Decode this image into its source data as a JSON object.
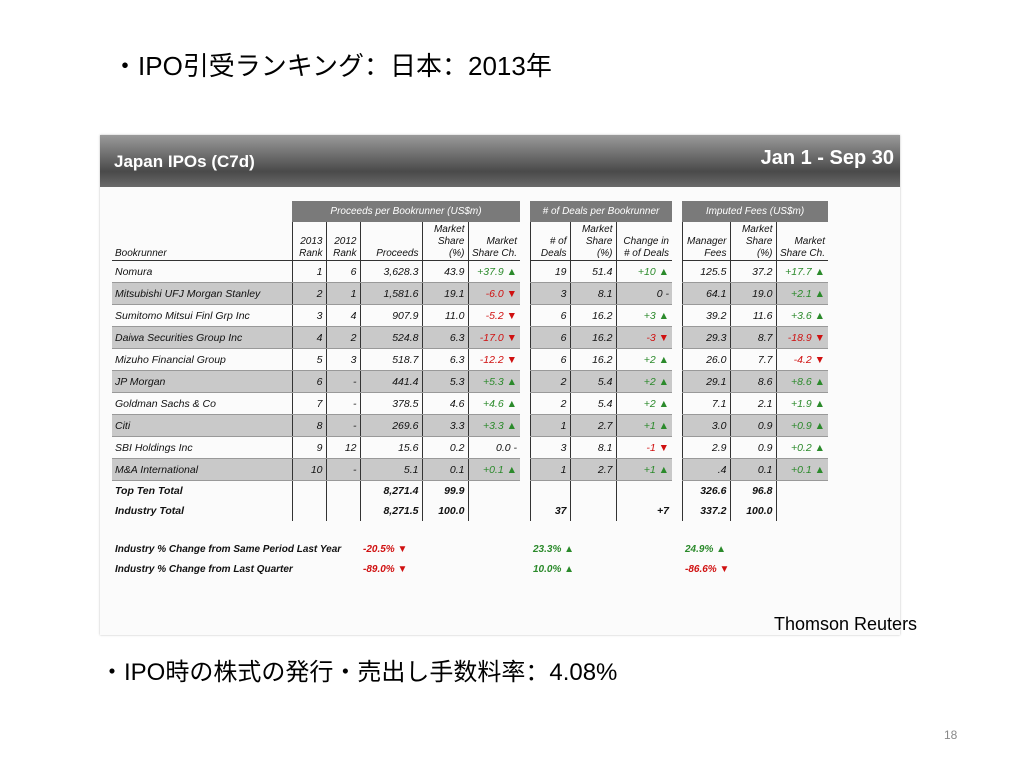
{
  "slide": {
    "title": "・IPO引受ランキング：日本：2013年",
    "source": "Thomson Reuters",
    "footer_text": "・IPO時の株式の発行・売出し手数料率：4.08%",
    "page_number": "18"
  },
  "table": {
    "title": "Japan IPOs (C7d)",
    "period": "Jan 1 - Sep 30",
    "groups": [
      "Proceeds per Bookrunner (US$m)",
      "# of Deals per Bookrunner",
      "Imputed Fees (US$m)"
    ],
    "columns": [
      "Bookrunner",
      "2013 Rank",
      "2012 Rank",
      "Proceeds",
      "Market Share (%)",
      "Market Share Ch.",
      "# of Deals",
      "Market Share (%)",
      "Change in # of Deals",
      "Manager Fees",
      "Market Share (%)",
      "Market Share Ch."
    ],
    "rows": [
      [
        "Nomura",
        "1",
        "6",
        "3,628.3",
        "43.9",
        "+37.9 ▲",
        "19",
        "51.4",
        "+10 ▲",
        "125.5",
        "37.2",
        "+17.7 ▲"
      ],
      [
        "Mitsubishi UFJ Morgan Stanley",
        "2",
        "1",
        "1,581.6",
        "19.1",
        "-6.0 ▼",
        "3",
        "8.1",
        "0 -",
        "64.1",
        "19.0",
        "+2.1 ▲"
      ],
      [
        "Sumitomo Mitsui Finl Grp Inc",
        "3",
        "4",
        "907.9",
        "11.0",
        "-5.2 ▼",
        "6",
        "16.2",
        "+3 ▲",
        "39.2",
        "11.6",
        "+3.6 ▲"
      ],
      [
        "Daiwa Securities Group Inc",
        "4",
        "2",
        "524.8",
        "6.3",
        "-17.0 ▼",
        "6",
        "16.2",
        "-3 ▼",
        "29.3",
        "8.7",
        "-18.9 ▼"
      ],
      [
        "Mizuho Financial Group",
        "5",
        "3",
        "518.7",
        "6.3",
        "-12.2 ▼",
        "6",
        "16.2",
        "+2 ▲",
        "26.0",
        "7.7",
        "-4.2 ▼"
      ],
      [
        "JP Morgan",
        "6",
        "-",
        "441.4",
        "5.3",
        "+5.3 ▲",
        "2",
        "5.4",
        "+2 ▲",
        "29.1",
        "8.6",
        "+8.6 ▲"
      ],
      [
        "Goldman Sachs & Co",
        "7",
        "-",
        "378.5",
        "4.6",
        "+4.6 ▲",
        "2",
        "5.4",
        "+2 ▲",
        "7.1",
        "2.1",
        "+1.9 ▲"
      ],
      [
        "Citi",
        "8",
        "-",
        "269.6",
        "3.3",
        "+3.3 ▲",
        "1",
        "2.7",
        "+1 ▲",
        "3.0",
        "0.9",
        "+0.9 ▲"
      ],
      [
        "SBI Holdings Inc",
        "9",
        "12",
        "15.6",
        "0.2",
        "0.0 -",
        "3",
        "8.1",
        "-1 ▼",
        "2.9",
        "0.9",
        "+0.2 ▲"
      ],
      [
        "M&A International",
        "10",
        "-",
        "5.1",
        "0.1",
        "+0.1 ▲",
        "1",
        "2.7",
        "+1 ▲",
        ".4",
        "0.1",
        "+0.1 ▲"
      ],
      [
        "Top Ten Total",
        null,
        null,
        "8,271.4",
        "99.9",
        null,
        null,
        null,
        null,
        "326.6",
        "96.8",
        null
      ],
      [
        "Industry Total",
        null,
        null,
        "8,271.5",
        "100.0",
        null,
        "37",
        null,
        "+7",
        "337.2",
        "100.0",
        null
      ]
    ],
    "changes": [
      {
        "label": "Industry % Change from Same Period Last Year",
        "values": [
          "-20.5% ▼",
          "23.3% ▲",
          "24.9% ▲"
        ]
      },
      {
        "label": "Industry % Change from Last Quarter",
        "values": [
          "-89.0% ▼",
          "10.0% ▲",
          "-86.6% ▼"
        ]
      }
    ]
  }
}
